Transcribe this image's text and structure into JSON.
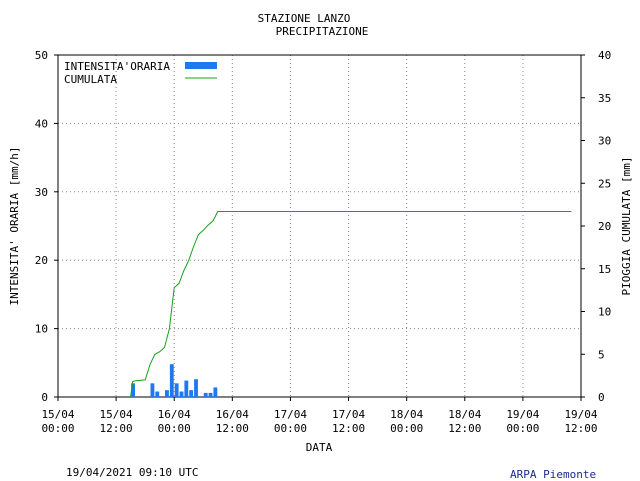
{
  "chart_data": {
    "type": "bar+line",
    "title": "STAZIONE LANZO",
    "subtitle": "PRECIPITAZIONE",
    "xlabel": "DATA",
    "ylabel_left": "INTENSITA' ORARIA [mm/h]",
    "ylabel_right": "PIOGGIA CUMULATA [mm]",
    "ylim_left": [
      0,
      50
    ],
    "ylim_right": [
      0,
      40
    ],
    "xlim_hours": [
      0,
      108
    ],
    "left_ticks": [
      "0",
      "10",
      "20",
      "30",
      "40",
      "50"
    ],
    "right_ticks": [
      "0",
      "5",
      "10",
      "15",
      "20",
      "25",
      "30",
      "35",
      "40"
    ],
    "x_ticks": [
      {
        "hour": 0,
        "line1": "15/04",
        "line2": "00:00"
      },
      {
        "hour": 12,
        "line1": "15/04",
        "line2": "12:00"
      },
      {
        "hour": 24,
        "line1": "16/04",
        "line2": "00:00"
      },
      {
        "hour": 36,
        "line1": "16/04",
        "line2": "12:00"
      },
      {
        "hour": 48,
        "line1": "17/04",
        "line2": "00:00"
      },
      {
        "hour": 60,
        "line1": "17/04",
        "line2": "12:00"
      },
      {
        "hour": 72,
        "line1": "18/04",
        "line2": "00:00"
      },
      {
        "hour": 84,
        "line1": "18/04",
        "line2": "12:00"
      },
      {
        "hour": 96,
        "line1": "19/04",
        "line2": "00:00"
      },
      {
        "hour": 108,
        "line1": "19/04",
        "line2": "12:00"
      }
    ],
    "grid": true,
    "legend_position": "top-left",
    "series": [
      {
        "name": "INTENSITA'ORARIA",
        "kind": "bar",
        "color": "#1e78f0",
        "points": [
          {
            "hour": 15.5,
            "value": 2.0
          },
          {
            "hour": 19.5,
            "value": 2.0
          },
          {
            "hour": 20.5,
            "value": 0.8
          },
          {
            "hour": 22.5,
            "value": 1.0
          },
          {
            "hour": 23.5,
            "value": 4.8
          },
          {
            "hour": 24.5,
            "value": 2.0
          },
          {
            "hour": 25.5,
            "value": 0.8
          },
          {
            "hour": 26.5,
            "value": 2.4
          },
          {
            "hour": 27.5,
            "value": 1.0
          },
          {
            "hour": 28.5,
            "value": 2.6
          },
          {
            "hour": 30.5,
            "value": 0.6
          },
          {
            "hour": 31.5,
            "value": 0.6
          },
          {
            "hour": 32.5,
            "value": 1.4
          }
        ]
      },
      {
        "name": "CUMULATA",
        "kind": "line",
        "color": "#1aa01a",
        "x_hours": [
          15,
          15.4,
          16,
          18,
          19,
          20,
          21,
          22,
          23,
          24,
          25,
          26,
          27,
          28,
          29,
          30,
          31,
          32,
          33,
          34,
          50,
          80,
          106
        ],
        "values": [
          0,
          1.8,
          1.9,
          2.0,
          3.8,
          5.0,
          5.3,
          5.8,
          8.0,
          12.8,
          13.3,
          14.8,
          16.0,
          17.6,
          19.0,
          19.5,
          20.1,
          20.6,
          21.7,
          21.7,
          21.7,
          21.7,
          21.7
        ]
      }
    ]
  },
  "footer": {
    "timestamp": "19/04/2021 09:10 UTC",
    "brand": "ARPA Piemonte"
  }
}
